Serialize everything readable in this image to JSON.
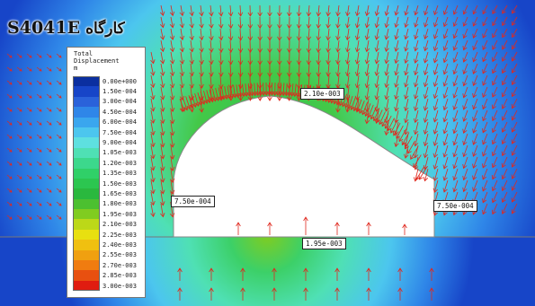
{
  "title": {
    "model_id": "S4041E",
    "persian_label": "کارگاه"
  },
  "legend": {
    "heading_line1": "Total",
    "heading_line2": "Displacement",
    "unit": "m",
    "entries": [
      {
        "value": "0.00e+000",
        "color": "#0b2fa0"
      },
      {
        "value": "1.50e-004",
        "color": "#1745c8"
      },
      {
        "value": "3.00e-004",
        "color": "#2a62da"
      },
      {
        "value": "4.50e-004",
        "color": "#2f86e8"
      },
      {
        "value": "6.00e-004",
        "color": "#3aa6ee"
      },
      {
        "value": "7.50e-004",
        "color": "#4cc6ee"
      },
      {
        "value": "9.00e-004",
        "color": "#5ee0e0"
      },
      {
        "value": "1.05e-003",
        "color": "#4fe0b4"
      },
      {
        "value": "1.20e-003",
        "color": "#3cd88c"
      },
      {
        "value": "1.35e-003",
        "color": "#30d068"
      },
      {
        "value": "1.50e-003",
        "color": "#2cc650"
      },
      {
        "value": "1.65e-003",
        "color": "#2ab83e"
      },
      {
        "value": "1.80e-003",
        "color": "#4cc030"
      },
      {
        "value": "1.95e-003",
        "color": "#80cc20"
      },
      {
        "value": "2.10e-003",
        "color": "#bcd818"
      },
      {
        "value": "2.25e-003",
        "color": "#e8e010"
      },
      {
        "value": "2.40e-003",
        "color": "#f0c010"
      },
      {
        "value": "2.55e-003",
        "color": "#f0a010"
      },
      {
        "value": "2.70e-003",
        "color": "#f07c10"
      },
      {
        "value": "2.85e-003",
        "color": "#e85010"
      },
      {
        "value": "3.00e-003",
        "color": "#e01c10"
      }
    ]
  },
  "annotations": {
    "crown": "2.10e-003",
    "left_wall": "7.50e-004",
    "right_wall": "7.50e-004",
    "floor": "1.95e-003"
  },
  "colors": {
    "arrow": "#e0281e",
    "excavation": "#ffffff",
    "rock_outer": "#2a6fd0",
    "rock_near": "#3cd068"
  }
}
